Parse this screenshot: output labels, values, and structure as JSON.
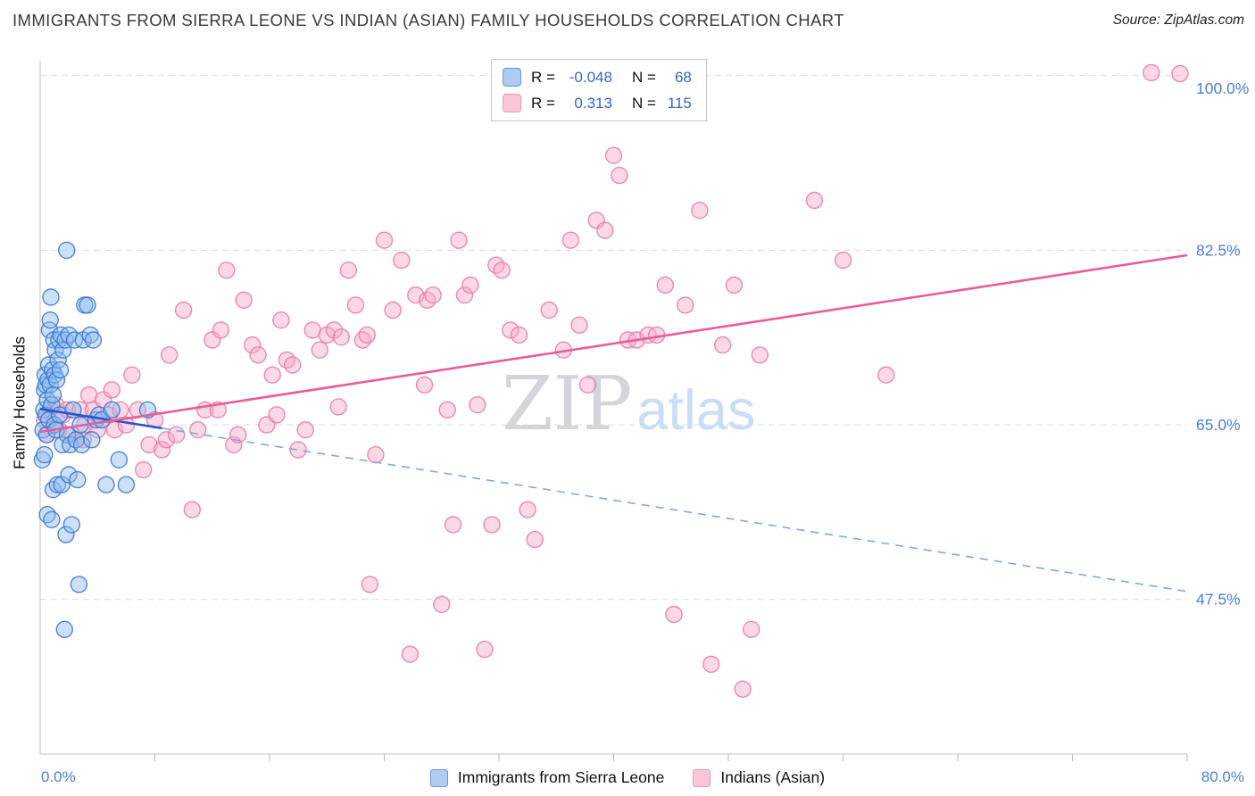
{
  "title": "IMMIGRANTS FROM SIERRA LEONE VS INDIAN (ASIAN) FAMILY HOUSEHOLDS CORRELATION CHART",
  "source": "Source: ZipAtlas.com",
  "watermark": {
    "text_primary": "ZIP",
    "text_secondary": "atlas",
    "color_primary": "#d4d5db",
    "color_secondary": "#c8ddf6"
  },
  "legend_box": {
    "series": [
      {
        "r_label": "R =",
        "r_value": "-0.048",
        "n_label": "N =",
        "n_value": "68",
        "color": "#aecbf4",
        "border": "#6b96d8"
      },
      {
        "r_label": "R =",
        "r_value": "0.313",
        "n_label": "N =",
        "n_value": "115",
        "color": "#f9c6d8",
        "border": "#e898b6"
      }
    ]
  },
  "bottom_legend": [
    {
      "label": "Immigrants from Sierra Leone",
      "color": "#aecbf4",
      "border": "#6b96d8"
    },
    {
      "label": "Indians (Asian)",
      "color": "#f9c6d8",
      "border": "#e898b6"
    }
  ],
  "axes": {
    "y_label": "Family Households",
    "x_min_label": "0.0%",
    "x_max_label": "80.0%",
    "x_range": [
      0,
      80
    ],
    "y_range": [
      32,
      101.5
    ],
    "x_tick_step": 8,
    "tick_color": "#4a80d8",
    "y_ticks": [
      {
        "value": 100.0,
        "label": "100.0%"
      },
      {
        "value": 82.5,
        "label": "82.5%"
      },
      {
        "value": 65.0,
        "label": "65.0%"
      },
      {
        "value": 47.5,
        "label": "47.5%"
      }
    ]
  },
  "chart_data": {
    "type": "scatter",
    "title": "Immigrants from Sierra Leone vs Indian (Asian) Family Households",
    "xlabel": "",
    "ylabel": "Family Households",
    "x_axis_units": "percent",
    "y_axis_units": "percent",
    "x_range": [
      0,
      80
    ],
    "grid": "horizontal-dashed",
    "legend_position": "bottom-center",
    "series": [
      {
        "id": "sierra-leone",
        "name": "Immigrants from Sierra Leone",
        "R": -0.048,
        "N": 68,
        "fill": "#8fbcf0",
        "stroke": "#3e79d0",
        "points": [
          [
            0.15,
            61.5
          ],
          [
            0.2,
            64.5
          ],
          [
            0.25,
            66.5
          ],
          [
            0.3,
            62
          ],
          [
            0.3,
            68.5
          ],
          [
            0.35,
            70
          ],
          [
            0.4,
            66
          ],
          [
            0.4,
            69
          ],
          [
            0.45,
            64
          ],
          [
            0.5,
            56
          ],
          [
            0.5,
            67.5
          ],
          [
            0.55,
            69.5
          ],
          [
            0.6,
            65.5
          ],
          [
            0.6,
            71
          ],
          [
            0.65,
            74.5
          ],
          [
            0.7,
            69
          ],
          [
            0.7,
            75.5
          ],
          [
            0.75,
            77.8
          ],
          [
            0.8,
            55.5
          ],
          [
            0.8,
            67
          ],
          [
            0.85,
            70.5
          ],
          [
            0.9,
            58.5
          ],
          [
            0.9,
            68
          ],
          [
            0.95,
            73.5
          ],
          [
            1.0,
            65
          ],
          [
            1.0,
            70
          ],
          [
            1.05,
            72.5
          ],
          [
            1.1,
            64.5
          ],
          [
            1.15,
            69.5
          ],
          [
            1.2,
            59
          ],
          [
            1.25,
            71.5
          ],
          [
            1.3,
            73.5
          ],
          [
            1.35,
            66
          ],
          [
            1.4,
            70.5
          ],
          [
            1.45,
            74
          ],
          [
            1.5,
            59
          ],
          [
            1.55,
            63
          ],
          [
            1.6,
            72.5
          ],
          [
            1.7,
            44.5
          ],
          [
            1.75,
            73.5
          ],
          [
            1.8,
            54
          ],
          [
            1.85,
            82.5
          ],
          [
            1.9,
            64
          ],
          [
            2.0,
            60
          ],
          [
            2.0,
            74
          ],
          [
            2.1,
            63
          ],
          [
            2.2,
            55
          ],
          [
            2.3,
            66.5
          ],
          [
            2.4,
            73.5
          ],
          [
            2.5,
            63.5
          ],
          [
            2.6,
            59.5
          ],
          [
            2.7,
            49
          ],
          [
            2.8,
            65
          ],
          [
            2.9,
            63
          ],
          [
            3.0,
            73.5
          ],
          [
            3.1,
            77
          ],
          [
            3.3,
            77
          ],
          [
            3.5,
            74
          ],
          [
            3.6,
            63.5
          ],
          [
            3.7,
            73.5
          ],
          [
            3.9,
            65.5
          ],
          [
            4.1,
            66
          ],
          [
            4.3,
            65.5
          ],
          [
            4.6,
            59
          ],
          [
            5.0,
            66.5
          ],
          [
            5.5,
            61.5
          ],
          [
            6.0,
            59
          ],
          [
            7.5,
            66.5
          ]
        ]
      },
      {
        "id": "indian-asian",
        "name": "Indians (Asian)",
        "R": 0.313,
        "N": 115,
        "fill": "#f6a8c5",
        "stroke": "#e87da8",
        "points": [
          [
            0.3,
            65.5
          ],
          [
            0.5,
            64
          ],
          [
            0.7,
            66.5
          ],
          [
            0.9,
            65
          ],
          [
            1.1,
            67
          ],
          [
            1.3,
            64.5
          ],
          [
            1.6,
            66
          ],
          [
            1.9,
            66.5
          ],
          [
            2.2,
            64
          ],
          [
            2.5,
            63.5
          ],
          [
            2.8,
            66.5
          ],
          [
            3.0,
            63.5
          ],
          [
            3.1,
            65
          ],
          [
            3.4,
            68
          ],
          [
            3.7,
            66.5
          ],
          [
            4.0,
            64.5
          ],
          [
            4.4,
            67.5
          ],
          [
            4.8,
            66
          ],
          [
            5.0,
            68.5
          ],
          [
            5.2,
            64.5
          ],
          [
            5.6,
            66.5
          ],
          [
            6.0,
            65
          ],
          [
            6.4,
            70
          ],
          [
            6.8,
            66.5
          ],
          [
            7.2,
            60.5
          ],
          [
            7.6,
            63
          ],
          [
            8.0,
            65.5
          ],
          [
            8.5,
            62.5
          ],
          [
            8.8,
            63.5
          ],
          [
            9.0,
            72
          ],
          [
            9.5,
            64
          ],
          [
            10.0,
            76.5
          ],
          [
            10.6,
            56.5
          ],
          [
            11.0,
            64.5
          ],
          [
            11.5,
            66.5
          ],
          [
            12.0,
            73.5
          ],
          [
            12.4,
            66.5
          ],
          [
            12.6,
            74.5
          ],
          [
            13.0,
            80.5
          ],
          [
            13.5,
            63
          ],
          [
            13.8,
            64
          ],
          [
            14.2,
            77.5
          ],
          [
            14.8,
            73
          ],
          [
            15.2,
            72
          ],
          [
            15.8,
            65
          ],
          [
            16.2,
            70
          ],
          [
            16.5,
            66
          ],
          [
            16.8,
            75.5
          ],
          [
            17.2,
            71.5
          ],
          [
            17.6,
            71
          ],
          [
            18.0,
            62.5
          ],
          [
            18.5,
            64.5
          ],
          [
            19.0,
            74.5
          ],
          [
            19.5,
            72.5
          ],
          [
            20.0,
            74
          ],
          [
            20.5,
            74.5
          ],
          [
            20.8,
            66.8
          ],
          [
            21.0,
            73.8
          ],
          [
            21.5,
            80.5
          ],
          [
            22.0,
            77
          ],
          [
            22.5,
            73.5
          ],
          [
            22.8,
            74
          ],
          [
            23.0,
            49
          ],
          [
            23.4,
            62
          ],
          [
            24.0,
            83.5
          ],
          [
            24.6,
            76.5
          ],
          [
            25.2,
            81.5
          ],
          [
            25.8,
            42
          ],
          [
            26.2,
            78
          ],
          [
            26.8,
            69
          ],
          [
            27.0,
            77.5
          ],
          [
            27.4,
            78
          ],
          [
            28.0,
            47
          ],
          [
            28.4,
            66.5
          ],
          [
            28.8,
            55
          ],
          [
            29.2,
            83.5
          ],
          [
            29.6,
            78
          ],
          [
            30.0,
            79
          ],
          [
            30.5,
            67
          ],
          [
            31.0,
            42.5
          ],
          [
            31.5,
            55
          ],
          [
            31.8,
            81
          ],
          [
            32.2,
            80.5
          ],
          [
            32.8,
            74.5
          ],
          [
            33.4,
            74
          ],
          [
            34.0,
            56.5
          ],
          [
            34.5,
            53.5
          ],
          [
            35.5,
            76.5
          ],
          [
            36.5,
            72.5
          ],
          [
            37.0,
            83.5
          ],
          [
            37.6,
            75
          ],
          [
            38.2,
            69
          ],
          [
            38.8,
            85.5
          ],
          [
            39.4,
            84.5
          ],
          [
            40.0,
            92
          ],
          [
            40.4,
            90
          ],
          [
            41.0,
            73.5
          ],
          [
            41.6,
            73.5
          ],
          [
            42.4,
            74
          ],
          [
            43.0,
            74
          ],
          [
            43.6,
            79
          ],
          [
            44.2,
            46
          ],
          [
            45.0,
            77
          ],
          [
            46.0,
            86.5
          ],
          [
            46.8,
            41
          ],
          [
            47.6,
            73
          ],
          [
            48.4,
            79
          ],
          [
            49.0,
            38.5
          ],
          [
            49.6,
            44.5
          ],
          [
            50.2,
            72
          ],
          [
            54.0,
            87.5
          ],
          [
            56.0,
            81.5
          ],
          [
            59.0,
            70
          ],
          [
            77.5,
            100.3
          ],
          [
            79.5,
            100.2
          ]
        ]
      }
    ],
    "trend_lines": [
      {
        "id": "sierra-leone-trend",
        "series": "Immigrants from Sierra Leone",
        "start": [
          0,
          66.6
        ],
        "end": [
          80,
          48.3
        ],
        "solid_until": 8.5,
        "color": "#2b55c8",
        "dashed_color": "#7fa8e0"
      },
      {
        "id": "indian-asian-trend",
        "series": "Indians (Asian)",
        "start": [
          0,
          64.3
        ],
        "end": [
          80,
          82.0
        ],
        "color": "#e85d97"
      }
    ]
  }
}
